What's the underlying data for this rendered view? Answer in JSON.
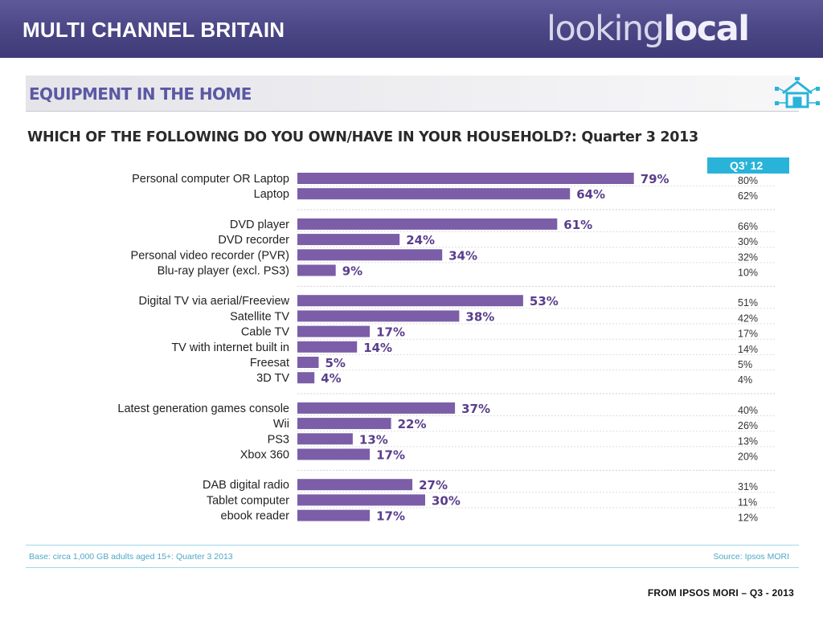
{
  "header": {
    "title": "MULTI CHANNEL BRITAIN",
    "logo_part1": "looking",
    "logo_part2": "local",
    "credit": "FROM IPSOS MORI – Q3 - 2013"
  },
  "panel": {
    "title": "EQUIPMENT IN THE HOME",
    "icon": "house-network-icon"
  },
  "colors": {
    "bar": "#7b5ea7",
    "accent": "#29b3d9",
    "header_bg": "#4a4685"
  },
  "chart_data": {
    "type": "bar",
    "orientation": "horizontal",
    "title": "WHICH OF THE FOLLOWING DO YOU OWN/HAVE IN YOUR HOUSEHOLD?: Quarter 3 2013",
    "comparison_header": "Q3’ 12",
    "value_suffix": "%",
    "xlim": [
      0,
      100
    ],
    "groups": [
      {
        "items": [
          {
            "label": "Personal computer OR Laptop",
            "value": 79,
            "prev": 80
          },
          {
            "label": "Laptop",
            "value": 64,
            "prev": 62
          }
        ]
      },
      {
        "items": [
          {
            "label": "DVD player",
            "value": 61,
            "prev": 66
          },
          {
            "label": "DVD recorder",
            "value": 24,
            "prev": 30
          },
          {
            "label": "Personal video recorder (PVR)",
            "value": 34,
            "prev": 32
          },
          {
            "label": "Blu-ray player (excl. PS3)",
            "value": 9,
            "prev": 10
          }
        ]
      },
      {
        "items": [
          {
            "label": "Digital TV via aerial/Freeview",
            "value": 53,
            "prev": 51
          },
          {
            "label": "Satellite TV",
            "value": 38,
            "prev": 42
          },
          {
            "label": "Cable TV",
            "value": 17,
            "prev": 17
          },
          {
            "label": "TV with internet built in",
            "value": 14,
            "prev": 14
          },
          {
            "label": "Freesat",
            "value": 5,
            "prev": 5
          },
          {
            "label": "3D TV",
            "value": 4,
            "prev": 4
          }
        ]
      },
      {
        "items": [
          {
            "label": "Latest generation games console",
            "value": 37,
            "prev": 40
          },
          {
            "label": "Wii",
            "value": 22,
            "prev": 26
          },
          {
            "label": "PS3",
            "value": 13,
            "prev": 13
          },
          {
            "label": "Xbox 360",
            "value": 17,
            "prev": 20
          }
        ]
      },
      {
        "items": [
          {
            "label": "DAB digital radio",
            "value": 27,
            "prev": 31
          },
          {
            "label": "Tablet computer",
            "value": 30,
            "prev": 11
          },
          {
            "label": "ebook reader",
            "value": 17,
            "prev": 12
          }
        ]
      }
    ],
    "base_note": "Base: circa 1,000 GB adults aged 15+: Quarter 3 2013",
    "source": "Source: Ipsos MORI"
  }
}
